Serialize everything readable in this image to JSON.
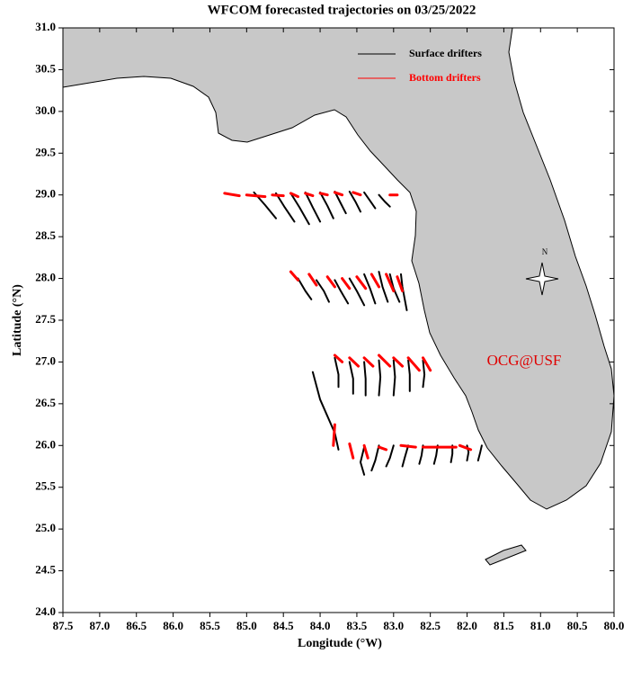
{
  "chart_data": {
    "type": "line",
    "title": "WFCOM forecasted trajectories on 03/25/2022",
    "x_label": "Longitude (°W)",
    "y_label": "Latitude (°N)",
    "xlim": [
      87.5,
      80.0
    ],
    "ylim": [
      24.0,
      31.0
    ],
    "xticks": [
      87.5,
      {
        "value": 87,
        "label": "87.0"
      },
      86.5,
      {
        "value": 86,
        "label": "86.0"
      },
      85.5,
      {
        "value": 85,
        "label": "85.0"
      },
      84.5,
      {
        "value": 84,
        "label": "84.0"
      },
      83.5,
      {
        "value": 83,
        "label": "83.0"
      },
      82.5,
      {
        "value": 82,
        "label": "82.0"
      },
      81.5,
      {
        "value": 81,
        "label": "81.0"
      },
      80.5,
      {
        "value": 80,
        "label": "80.0"
      }
    ],
    "yticks": [
      {
        "value": 24,
        "label": "24.0"
      },
      24.5,
      {
        "value": 25,
        "label": "25.0"
      },
      25.5,
      {
        "value": 26,
        "label": "26.0"
      },
      26.5,
      {
        "value": 27,
        "label": "27.0"
      },
      27.5,
      {
        "value": 28,
        "label": "28.0"
      },
      28.5,
      {
        "value": 29,
        "label": "29.0"
      },
      29.5,
      {
        "value": 30,
        "label": "30.0"
      },
      30.5,
      {
        "value": 31,
        "label": "31.0"
      }
    ],
    "legend": "upper right",
    "annotations": [
      "OCG@USF",
      "N"
    ],
    "series": [
      {
        "name": "Surface drifters",
        "color": "#000000",
        "width": 2,
        "x": [
          84.9,
          84.75,
          84.6,
          null,
          84.6,
          84.48,
          84.35,
          null,
          84.4,
          84.28,
          84.15,
          null,
          84.2,
          84.1,
          84.0,
          null,
          84.0,
          83.9,
          83.82,
          null,
          83.8,
          83.72,
          83.65,
          null,
          83.6,
          83.52,
          83.45,
          null,
          83.4,
          83.32,
          83.25,
          null,
          83.2,
          83.12,
          83.05,
          null,
          84.3,
          84.2,
          84.12,
          null,
          84.05,
          83.95,
          83.88,
          null,
          83.8,
          83.72,
          83.62,
          null,
          83.6,
          83.5,
          83.4,
          null,
          83.4,
          83.32,
          83.25,
          null,
          83.2,
          83.15,
          83.08,
          null,
          83.05,
          83.0,
          82.92,
          null,
          82.9,
          82.88,
          82.82,
          null,
          83.8,
          83.75,
          83.75,
          null,
          83.6,
          83.55,
          83.55,
          null,
          83.4,
          83.38,
          83.38,
          null,
          83.2,
          83.18,
          83.2,
          null,
          83.0,
          82.98,
          83.0,
          null,
          82.8,
          82.78,
          82.78,
          null,
          82.6,
          82.58,
          82.6,
          null,
          84.1,
          84.0,
          83.8,
          83.75,
          null,
          83.4,
          83.45,
          83.4,
          null,
          83.2,
          83.25,
          83.3,
          null,
          83.0,
          83.05,
          83.1,
          null,
          82.8,
          82.85,
          82.88,
          null,
          82.6,
          82.62,
          82.65,
          null,
          82.4,
          82.42,
          82.45,
          null,
          82.2,
          82.2,
          82.22,
          null,
          82.0,
          81.98,
          82.0,
          null,
          81.8,
          81.82,
          81.85
        ],
        "y": [
          29.03,
          28.88,
          28.72,
          null,
          29.02,
          28.85,
          28.68,
          null,
          29.02,
          28.85,
          28.65,
          null,
          29.03,
          28.85,
          28.68,
          null,
          29.03,
          28.87,
          28.72,
          null,
          29.04,
          28.9,
          28.78,
          null,
          29.04,
          28.92,
          28.8,
          null,
          29.03,
          28.93,
          28.84,
          null,
          29.0,
          28.92,
          28.86,
          null,
          28.0,
          27.85,
          27.75,
          null,
          27.98,
          27.85,
          27.72,
          null,
          27.98,
          27.85,
          27.7,
          null,
          28.0,
          27.85,
          27.68,
          null,
          28.05,
          27.88,
          27.7,
          null,
          28.08,
          27.9,
          27.72,
          null,
          28.05,
          27.88,
          27.72,
          null,
          28.05,
          27.9,
          27.62,
          null,
          27.05,
          26.85,
          26.7,
          null,
          27.0,
          26.8,
          26.62,
          null,
          27.0,
          26.8,
          26.6,
          null,
          27.02,
          26.82,
          26.6,
          null,
          27.02,
          26.82,
          26.6,
          null,
          27.02,
          26.85,
          26.65,
          null,
          27.02,
          26.85,
          26.7,
          null,
          26.88,
          26.55,
          26.15,
          25.95,
          null,
          25.98,
          25.8,
          25.65,
          null,
          26.0,
          25.82,
          25.7,
          null,
          26.0,
          25.85,
          25.75,
          null,
          26.0,
          25.85,
          25.75,
          null,
          26.0,
          25.88,
          25.78,
          null,
          26.0,
          25.88,
          25.78,
          null,
          26.0,
          25.9,
          25.8,
          null,
          26.0,
          25.92,
          25.82,
          null,
          26.0,
          25.92,
          25.82
        ]
      },
      {
        "name": "Bottom drifters",
        "color": "#ff0000",
        "width": 3,
        "x": [
          85.3,
          85.1,
          null,
          85.0,
          84.75,
          null,
          84.65,
          84.5,
          null,
          84.4,
          84.3,
          null,
          84.2,
          84.1,
          null,
          84.0,
          83.9,
          null,
          83.8,
          83.7,
          null,
          83.55,
          83.45,
          null,
          83.05,
          82.95,
          null,
          84.4,
          84.3,
          null,
          84.15,
          84.05,
          null,
          83.9,
          83.8,
          null,
          83.7,
          83.6,
          null,
          83.5,
          83.38,
          null,
          83.3,
          83.2,
          null,
          83.1,
          83.0,
          null,
          82.95,
          82.88,
          null,
          83.8,
          83.7,
          null,
          83.6,
          83.48,
          null,
          83.4,
          83.28,
          null,
          83.2,
          83.05,
          null,
          83.0,
          82.88,
          null,
          82.8,
          82.65,
          null,
          82.6,
          82.5,
          null,
          83.8,
          83.82,
          null,
          83.6,
          83.55,
          null,
          83.4,
          83.35,
          null,
          83.2,
          83.1,
          null,
          82.9,
          82.7,
          null,
          82.6,
          82.4,
          null,
          82.4,
          82.15,
          null,
          82.1,
          81.95
        ],
        "y": [
          29.02,
          28.99,
          null,
          29.0,
          28.98,
          null,
          29.0,
          28.99,
          null,
          29.02,
          28.98,
          null,
          29.02,
          28.99,
          null,
          29.02,
          29.0,
          null,
          29.03,
          29.0,
          null,
          29.03,
          29.0,
          null,
          29.0,
          29.0,
          null,
          28.08,
          27.98,
          null,
          28.05,
          27.92,
          null,
          28.02,
          27.9,
          null,
          28.0,
          27.88,
          null,
          28.02,
          27.88,
          null,
          28.05,
          27.9,
          null,
          28.05,
          27.85,
          null,
          28.02,
          27.85,
          null,
          27.08,
          27.0,
          null,
          27.05,
          26.95,
          null,
          27.05,
          26.95,
          null,
          27.08,
          26.95,
          null,
          27.05,
          26.95,
          null,
          27.05,
          26.9,
          null,
          27.05,
          26.9,
          null,
          26.25,
          26.0,
          null,
          26.02,
          25.85,
          null,
          26.0,
          25.85,
          null,
          25.98,
          25.95,
          null,
          26.0,
          25.98,
          null,
          25.98,
          25.98,
          null,
          25.98,
          25.98,
          null,
          26.0,
          25.95
        ]
      }
    ]
  }
}
